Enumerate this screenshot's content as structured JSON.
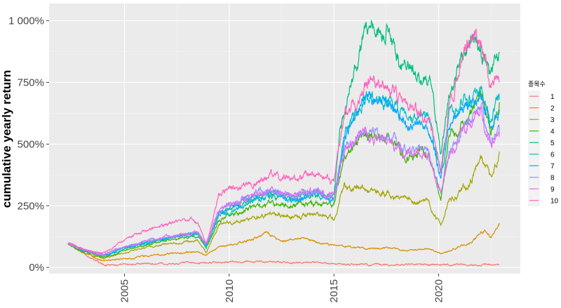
{
  "chart_data": {
    "type": "line",
    "title": "",
    "xlabel": "",
    "ylabel": "cumulative yearly return",
    "xlim": [
      2001.4,
      2023.9
    ],
    "ylim": [
      -25,
      1070
    ],
    "x_ticks": [
      2005,
      2010,
      2015,
      2020
    ],
    "x_tick_labels": [
      "2005",
      "2010",
      "2015",
      "2020"
    ],
    "y_ticks": [
      0,
      250,
      500,
      750,
      1000
    ],
    "y_tick_labels": [
      "0%",
      "250%",
      "500%",
      "750%",
      "1 000%"
    ],
    "grid": true,
    "legend_title": "종목수",
    "legend_position": "right",
    "series": [
      {
        "name": "1",
        "color": "#F8766D",
        "values": [
          [
            2002.3,
            100
          ],
          [
            2003.0,
            60
          ],
          [
            2003.8,
            20
          ],
          [
            2004.0,
            10
          ],
          [
            2005.0,
            15
          ],
          [
            2007.0,
            15
          ],
          [
            2009.0,
            18
          ],
          [
            2011.0,
            25
          ],
          [
            2013.0,
            20
          ],
          [
            2015.0,
            15
          ],
          [
            2017.0,
            10
          ],
          [
            2019.0,
            12
          ],
          [
            2021.0,
            12
          ],
          [
            2022.9,
            10
          ]
        ]
      },
      {
        "name": "2",
        "color": "#D89000",
        "values": [
          [
            2002.3,
            100
          ],
          [
            2003.0,
            70
          ],
          [
            2003.8,
            30
          ],
          [
            2004.0,
            25
          ],
          [
            2005.0,
            35
          ],
          [
            2006.0,
            45
          ],
          [
            2007.0,
            55
          ],
          [
            2008.5,
            65
          ],
          [
            2008.9,
            50
          ],
          [
            2009.5,
            80
          ],
          [
            2010.0,
            90
          ],
          [
            2011.0,
            110
          ],
          [
            2011.8,
            140
          ],
          [
            2012.5,
            105
          ],
          [
            2013.5,
            120
          ],
          [
            2014.5,
            95
          ],
          [
            2015.5,
            90
          ],
          [
            2016.5,
            75
          ],
          [
            2017.5,
            80
          ],
          [
            2018.5,
            70
          ],
          [
            2019.5,
            75
          ],
          [
            2020.2,
            55
          ],
          [
            2020.8,
            80
          ],
          [
            2021.5,
            100
          ],
          [
            2022.2,
            150
          ],
          [
            2022.5,
            120
          ],
          [
            2022.9,
            180
          ]
        ]
      },
      {
        "name": "3",
        "color": "#A3A500",
        "values": [
          [
            2002.3,
            95
          ],
          [
            2003.0,
            60
          ],
          [
            2003.8,
            40
          ],
          [
            2004.0,
            35
          ],
          [
            2005.0,
            60
          ],
          [
            2006.0,
            80
          ],
          [
            2007.0,
            95
          ],
          [
            2008.5,
            110
          ],
          [
            2008.9,
            60
          ],
          [
            2009.5,
            170
          ],
          [
            2010.0,
            180
          ],
          [
            2011.0,
            200
          ],
          [
            2012.0,
            220
          ],
          [
            2013.0,
            200
          ],
          [
            2014.0,
            220
          ],
          [
            2015.0,
            200
          ],
          [
            2015.5,
            330
          ],
          [
            2016.5,
            320
          ],
          [
            2017.5,
            300
          ],
          [
            2018.5,
            270
          ],
          [
            2019.5,
            260
          ],
          [
            2020.1,
            170
          ],
          [
            2020.5,
            270
          ],
          [
            2021.5,
            340
          ],
          [
            2022.0,
            440
          ],
          [
            2022.5,
            360
          ],
          [
            2022.9,
            470
          ]
        ]
      },
      {
        "name": "4",
        "color": "#39B600",
        "values": [
          [
            2002.3,
            95
          ],
          [
            2003.0,
            65
          ],
          [
            2003.8,
            45
          ],
          [
            2004.0,
            40
          ],
          [
            2005.0,
            70
          ],
          [
            2006.0,
            90
          ],
          [
            2007.0,
            110
          ],
          [
            2008.5,
            130
          ],
          [
            2008.9,
            80
          ],
          [
            2009.5,
            190
          ],
          [
            2010.0,
            210
          ],
          [
            2011.0,
            240
          ],
          [
            2012.0,
            260
          ],
          [
            2013.0,
            250
          ],
          [
            2014.0,
            260
          ],
          [
            2015.0,
            250
          ],
          [
            2015.5,
            450
          ],
          [
            2016.5,
            540
          ],
          [
            2017.5,
            520
          ],
          [
            2018.5,
            460
          ],
          [
            2019.5,
            470
          ],
          [
            2020.1,
            280
          ],
          [
            2020.5,
            520
          ],
          [
            2021.5,
            620
          ],
          [
            2022.0,
            700
          ],
          [
            2022.5,
            560
          ],
          [
            2022.9,
            670
          ]
        ]
      },
      {
        "name": "5",
        "color": "#00BF7D",
        "values": [
          [
            2002.3,
            100
          ],
          [
            2003.0,
            70
          ],
          [
            2003.8,
            50
          ],
          [
            2004.0,
            45
          ],
          [
            2005.0,
            80
          ],
          [
            2006.0,
            100
          ],
          [
            2007.0,
            120
          ],
          [
            2008.5,
            140
          ],
          [
            2008.9,
            90
          ],
          [
            2009.5,
            220
          ],
          [
            2010.0,
            240
          ],
          [
            2011.0,
            280
          ],
          [
            2012.0,
            300
          ],
          [
            2013.0,
            280
          ],
          [
            2014.0,
            300
          ],
          [
            2015.0,
            280
          ],
          [
            2015.3,
            550
          ],
          [
            2016.0,
            800
          ],
          [
            2016.5,
            990
          ],
          [
            2017.0,
            950
          ],
          [
            2017.5,
            980
          ],
          [
            2018.0,
            850
          ],
          [
            2019.0,
            780
          ],
          [
            2019.6,
            750
          ],
          [
            2020.1,
            450
          ],
          [
            2020.5,
            700
          ],
          [
            2021.0,
            820
          ],
          [
            2021.6,
            940
          ],
          [
            2022.0,
            900
          ],
          [
            2022.5,
            780
          ],
          [
            2022.9,
            870
          ]
        ]
      },
      {
        "name": "6",
        "color": "#00BFC4",
        "values": [
          [
            2002.3,
            100
          ],
          [
            2003.0,
            70
          ],
          [
            2003.8,
            50
          ],
          [
            2004.0,
            45
          ],
          [
            2005.0,
            75
          ],
          [
            2006.0,
            95
          ],
          [
            2007.0,
            115
          ],
          [
            2008.5,
            135
          ],
          [
            2008.9,
            85
          ],
          [
            2009.5,
            210
          ],
          [
            2010.0,
            230
          ],
          [
            2011.0,
            270
          ],
          [
            2012.0,
            290
          ],
          [
            2013.0,
            270
          ],
          [
            2014.0,
            290
          ],
          [
            2015.0,
            270
          ],
          [
            2015.5,
            530
          ],
          [
            2016.5,
            700
          ],
          [
            2017.5,
            680
          ],
          [
            2018.5,
            600
          ],
          [
            2019.5,
            600
          ],
          [
            2020.1,
            380
          ],
          [
            2020.5,
            600
          ],
          [
            2021.5,
            700
          ],
          [
            2022.0,
            720
          ],
          [
            2022.5,
            600
          ],
          [
            2022.9,
            680
          ]
        ]
      },
      {
        "name": "7",
        "color": "#00A9FF",
        "values": [
          [
            2002.3,
            100
          ],
          [
            2003.0,
            70
          ],
          [
            2003.8,
            52
          ],
          [
            2004.0,
            48
          ],
          [
            2005.0,
            80
          ],
          [
            2006.0,
            100
          ],
          [
            2007.0,
            120
          ],
          [
            2008.5,
            140
          ],
          [
            2008.9,
            90
          ],
          [
            2009.5,
            220
          ],
          [
            2010.0,
            240
          ],
          [
            2011.0,
            280
          ],
          [
            2012.0,
            300
          ],
          [
            2013.0,
            280
          ],
          [
            2014.0,
            300
          ],
          [
            2015.0,
            280
          ],
          [
            2015.5,
            520
          ],
          [
            2016.5,
            690
          ],
          [
            2017.5,
            670
          ],
          [
            2018.5,
            580
          ],
          [
            2019.5,
            580
          ],
          [
            2020.1,
            360
          ],
          [
            2020.5,
            580
          ],
          [
            2021.5,
            670
          ],
          [
            2022.0,
            700
          ],
          [
            2022.5,
            560
          ],
          [
            2022.9,
            640
          ]
        ]
      },
      {
        "name": "8",
        "color": "#9590FF",
        "values": [
          [
            2002.3,
            100
          ],
          [
            2003.0,
            72
          ],
          [
            2003.8,
            55
          ],
          [
            2004.0,
            50
          ],
          [
            2005.0,
            85
          ],
          [
            2006.0,
            105
          ],
          [
            2007.0,
            125
          ],
          [
            2008.5,
            145
          ],
          [
            2008.9,
            95
          ],
          [
            2009.5,
            230
          ],
          [
            2010.0,
            250
          ],
          [
            2011.0,
            290
          ],
          [
            2012.0,
            310
          ],
          [
            2013.0,
            290
          ],
          [
            2014.0,
            310
          ],
          [
            2015.0,
            290
          ],
          [
            2015.5,
            480
          ],
          [
            2016.5,
            560
          ],
          [
            2017.5,
            540
          ],
          [
            2018.5,
            470
          ],
          [
            2019.5,
            470
          ],
          [
            2020.1,
            300
          ],
          [
            2020.5,
            480
          ],
          [
            2021.5,
            600
          ],
          [
            2022.0,
            660
          ],
          [
            2022.5,
            520
          ],
          [
            2022.9,
            540
          ]
        ]
      },
      {
        "name": "9",
        "color": "#E76BF3",
        "values": [
          [
            2002.3,
            100
          ],
          [
            2003.0,
            72
          ],
          [
            2003.8,
            55
          ],
          [
            2004.0,
            50
          ],
          [
            2005.0,
            85
          ],
          [
            2006.0,
            105
          ],
          [
            2007.0,
            125
          ],
          [
            2008.5,
            145
          ],
          [
            2008.9,
            95
          ],
          [
            2009.5,
            230
          ],
          [
            2010.0,
            250
          ],
          [
            2011.0,
            290
          ],
          [
            2012.0,
            310
          ],
          [
            2013.0,
            290
          ],
          [
            2014.0,
            310
          ],
          [
            2015.0,
            290
          ],
          [
            2015.5,
            470
          ],
          [
            2016.5,
            540
          ],
          [
            2017.5,
            520
          ],
          [
            2018.5,
            450
          ],
          [
            2019.5,
            450
          ],
          [
            2020.1,
            290
          ],
          [
            2020.5,
            460
          ],
          [
            2021.5,
            580
          ],
          [
            2022.0,
            640
          ],
          [
            2022.5,
            500
          ],
          [
            2022.9,
            530
          ]
        ]
      },
      {
        "name": "10",
        "color": "#FF62BC",
        "values": [
          [
            2002.3,
            100
          ],
          [
            2003.0,
            75
          ],
          [
            2003.8,
            58
          ],
          [
            2004.0,
            55
          ],
          [
            2005.0,
            110
          ],
          [
            2006.0,
            150
          ],
          [
            2007.0,
            170
          ],
          [
            2008.0,
            200
          ],
          [
            2008.5,
            180
          ],
          [
            2008.9,
            90
          ],
          [
            2009.5,
            300
          ],
          [
            2010.0,
            320
          ],
          [
            2011.0,
            340
          ],
          [
            2012.0,
            370
          ],
          [
            2013.0,
            350
          ],
          [
            2014.0,
            380
          ],
          [
            2015.0,
            350
          ],
          [
            2015.5,
            620
          ],
          [
            2016.5,
            740
          ],
          [
            2017.5,
            730
          ],
          [
            2018.5,
            640
          ],
          [
            2019.5,
            620
          ],
          [
            2020.1,
            400
          ],
          [
            2020.5,
            650
          ],
          [
            2021.0,
            800
          ],
          [
            2021.7,
            980
          ],
          [
            2022.0,
            900
          ],
          [
            2022.5,
            730
          ],
          [
            2022.9,
            750
          ]
        ]
      }
    ]
  }
}
